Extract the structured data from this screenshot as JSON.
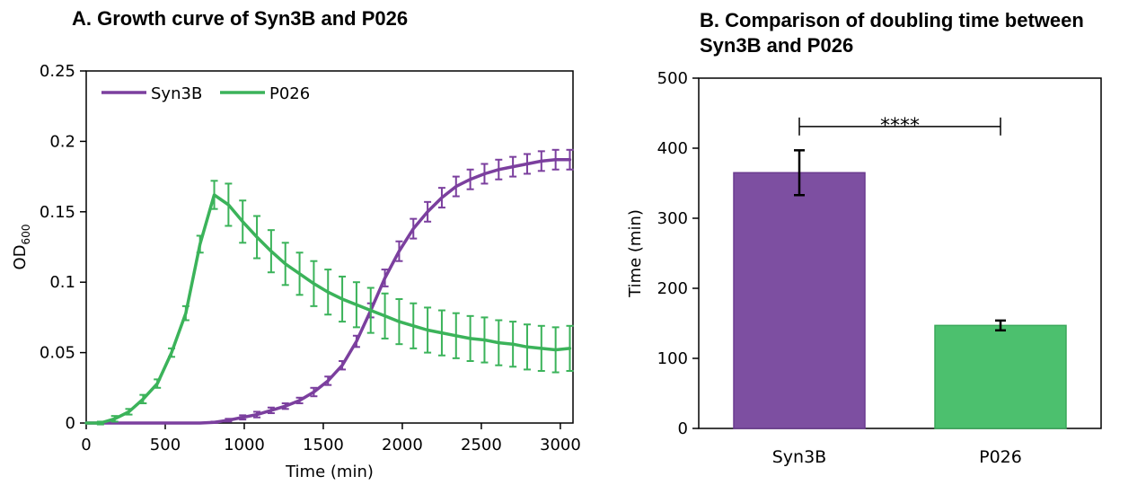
{
  "chart_data": [
    {
      "type": "line",
      "title": "A. Growth curve of Syn3B and P026",
      "xlabel": "Time (min)",
      "ylabel": "OD",
      "ylabel_sub": "600",
      "xlim": [
        0,
        3080
      ],
      "ylim": [
        0,
        0.25
      ],
      "xticks": [
        0,
        500,
        1000,
        1500,
        2000,
        2500,
        3000
      ],
      "yticks": [
        0,
        0.05,
        0.1,
        0.15,
        0.2,
        0.25
      ],
      "ytick_labels": [
        "0",
        "0.05",
        "0.1",
        "0.15",
        "0.2",
        "0.25"
      ],
      "legend_position": "top-left",
      "error_bars": true,
      "series": [
        {
          "name": "Syn3B",
          "color": "#7B3F9E",
          "x": [
            0,
            90,
            180,
            270,
            360,
            450,
            540,
            630,
            720,
            810,
            900,
            990,
            1080,
            1170,
            1260,
            1350,
            1440,
            1530,
            1620,
            1710,
            1800,
            1890,
            1980,
            2070,
            2160,
            2250,
            2340,
            2430,
            2520,
            2610,
            2700,
            2790,
            2880,
            2970,
            3060
          ],
          "y": [
            0,
            0,
            0,
            0,
            0,
            0,
            0,
            0,
            0,
            0.0005,
            0.002,
            0.004,
            0.006,
            0.009,
            0.012,
            0.016,
            0.022,
            0.03,
            0.041,
            0.058,
            0.08,
            0.103,
            0.122,
            0.138,
            0.15,
            0.16,
            0.168,
            0.173,
            0.177,
            0.18,
            0.182,
            0.184,
            0.186,
            0.187,
            0.187
          ],
          "err": [
            0,
            0,
            0,
            0,
            0,
            0,
            0,
            0,
            0,
            0.0005,
            0.001,
            0.0015,
            0.002,
            0.002,
            0.002,
            0.002,
            0.003,
            0.003,
            0.003,
            0.004,
            0.005,
            0.006,
            0.007,
            0.007,
            0.007,
            0.007,
            0.007,
            0.007,
            0.007,
            0.007,
            0.007,
            0.007,
            0.007,
            0.007,
            0.007
          ]
        },
        {
          "name": "P026",
          "color": "#3BB35A",
          "x": [
            0,
            90,
            180,
            270,
            360,
            450,
            540,
            630,
            720,
            810,
            900,
            990,
            1080,
            1170,
            1260,
            1350,
            1440,
            1530,
            1620,
            1710,
            1800,
            1890,
            1980,
            2070,
            2160,
            2250,
            2340,
            2430,
            2520,
            2610,
            2700,
            2790,
            2880,
            2970,
            3060
          ],
          "y": [
            0,
            0,
            0.003,
            0.008,
            0.017,
            0.028,
            0.05,
            0.078,
            0.127,
            0.162,
            0.155,
            0.143,
            0.132,
            0.122,
            0.113,
            0.106,
            0.099,
            0.093,
            0.088,
            0.084,
            0.08,
            0.076,
            0.072,
            0.069,
            0.066,
            0.064,
            0.062,
            0.06,
            0.059,
            0.057,
            0.056,
            0.054,
            0.053,
            0.052,
            0.053
          ],
          "err": [
            0,
            0.001,
            0.002,
            0.002,
            0.003,
            0.003,
            0.003,
            0.005,
            0.006,
            0.01,
            0.015,
            0.015,
            0.015,
            0.015,
            0.015,
            0.015,
            0.016,
            0.016,
            0.016,
            0.016,
            0.016,
            0.016,
            0.016,
            0.016,
            0.016,
            0.016,
            0.016,
            0.016,
            0.016,
            0.016,
            0.016,
            0.016,
            0.016,
            0.016,
            0.016
          ]
        }
      ]
    },
    {
      "type": "bar",
      "title": "B. Comparison of doubling time between Syn3B and P026",
      "title_lines": [
        "B. Comparison of doubling time between",
        "Syn3B and P026"
      ],
      "ylabel": "Time (min)",
      "ylim": [
        0,
        500
      ],
      "yticks": [
        0,
        100,
        200,
        300,
        400,
        500
      ],
      "categories": [
        "Syn3B",
        "P026"
      ],
      "values": [
        365,
        147
      ],
      "errors": [
        32,
        7
      ],
      "colors": [
        "#7D4FA1",
        "#4CC06E"
      ],
      "edge_colors": [
        "#6A3A8F",
        "#3AA85A"
      ],
      "significance": "****"
    }
  ]
}
